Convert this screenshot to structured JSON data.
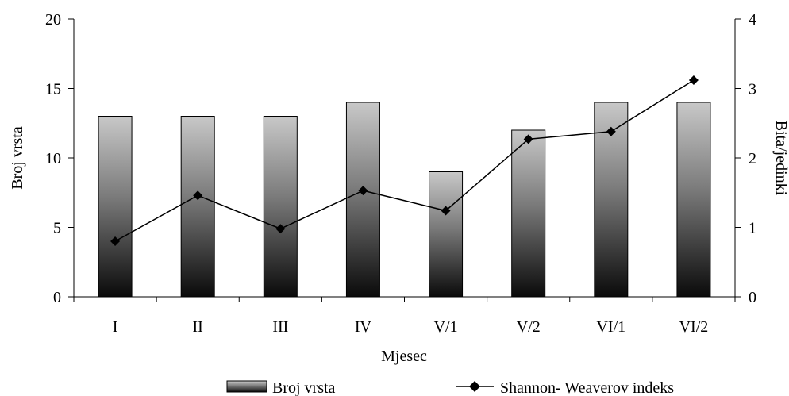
{
  "chart_data": {
    "type": "bar",
    "categories": [
      "I",
      "II",
      "III",
      "IV",
      "V/1",
      "V/2",
      "VI/1",
      "VI/2"
    ],
    "series": [
      {
        "name": "Broj vrsta",
        "type": "bar",
        "axis": "left",
        "values": [
          13,
          13,
          13,
          14,
          9,
          12,
          14,
          14
        ]
      },
      {
        "name": "Shannon- Weaverov indeks",
        "type": "line",
        "axis": "right",
        "marker": "diamond",
        "values": [
          0.8,
          1.46,
          0.98,
          1.53,
          1.24,
          2.27,
          2.38,
          3.12
        ]
      }
    ],
    "xlabel": "Mjesec",
    "ylabel": "Broj vrsta",
    "y2label": "Bita/jedinki",
    "ylim": [
      0,
      20
    ],
    "y2lim": [
      0,
      4
    ],
    "yticks": [
      0,
      5,
      10,
      15,
      20
    ],
    "y2ticks": [
      0,
      1,
      2,
      3,
      4
    ],
    "grid": false,
    "legend_position": "bottom",
    "colors": {
      "bar_top": "#c8c8c8",
      "bar_bottom": "#0a0a0a",
      "line": "#000000",
      "axis": "#000000"
    }
  }
}
